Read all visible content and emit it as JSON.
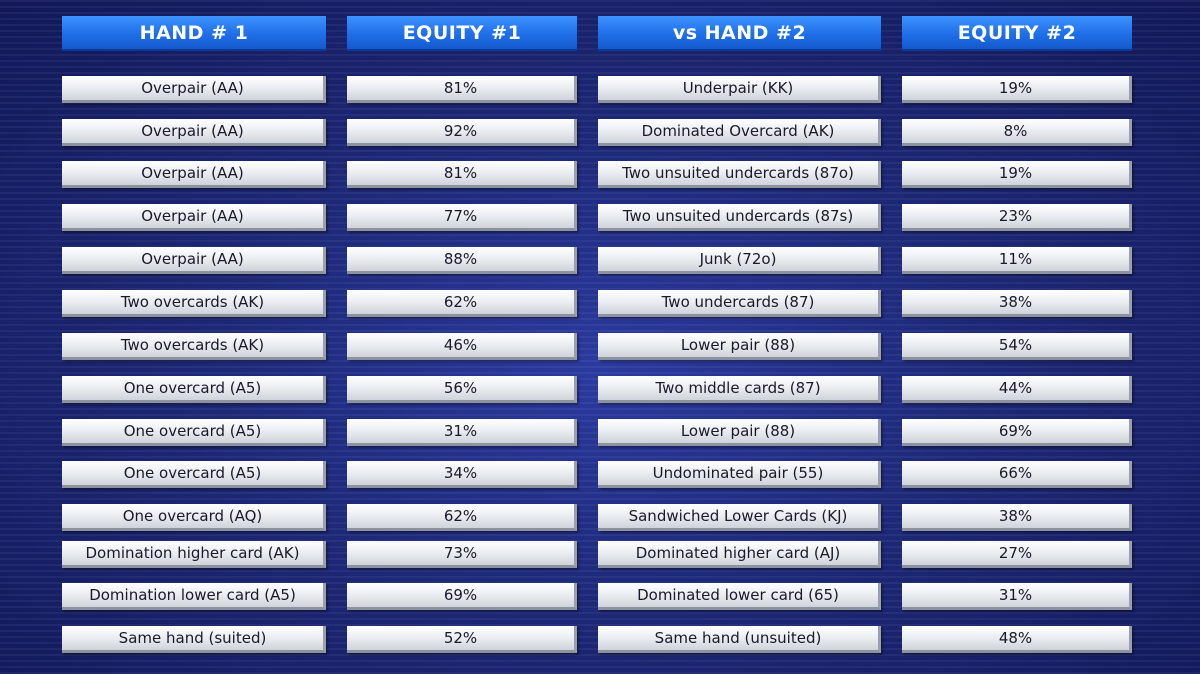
{
  "table": {
    "headers": [
      "HAND # 1",
      "EQUITY #1",
      "vs HAND #2",
      "EQUITY #2"
    ],
    "rows": [
      [
        "Overpair (AA)",
        "81%",
        "Underpair (KK)",
        "19%"
      ],
      [
        "Overpair (AA)",
        "92%",
        "Dominated Overcard (AK)",
        "8%"
      ],
      [
        "Overpair (AA)",
        "81%",
        "Two unsuited undercards (87o)",
        "19%"
      ],
      [
        "Overpair (AA)",
        "77%",
        "Two unsuited undercards (87s)",
        "23%"
      ],
      [
        "Overpair (AA)",
        "88%",
        "Junk (72o)",
        "11%"
      ],
      [
        "Two overcards (AK)",
        "62%",
        "Two undercards (87)",
        "38%"
      ],
      [
        "Two overcards (AK)",
        "46%",
        "Lower pair (88)",
        "54%"
      ],
      [
        "One overcard (A5)",
        "56%",
        "Two middle cards (87)",
        "44%"
      ],
      [
        "One overcard (A5)",
        "31%",
        "Lower pair (88)",
        "69%"
      ],
      [
        "One overcard (A5)",
        "34%",
        "Undominated pair (55)",
        "66%"
      ],
      [
        "One overcard (AQ)",
        "62%",
        "Sandwiched Lower Cards (KJ)",
        "38%"
      ],
      [
        "Domination higher card (AK)",
        "73%",
        "Dominated higher card (AJ)",
        "27%"
      ],
      [
        "Domination lower card (A5)",
        "69%",
        "Dominated lower card (65)",
        "31%"
      ],
      [
        "Same hand (suited)",
        "52%",
        "Same hand (unsuited)",
        "48%"
      ]
    ]
  }
}
